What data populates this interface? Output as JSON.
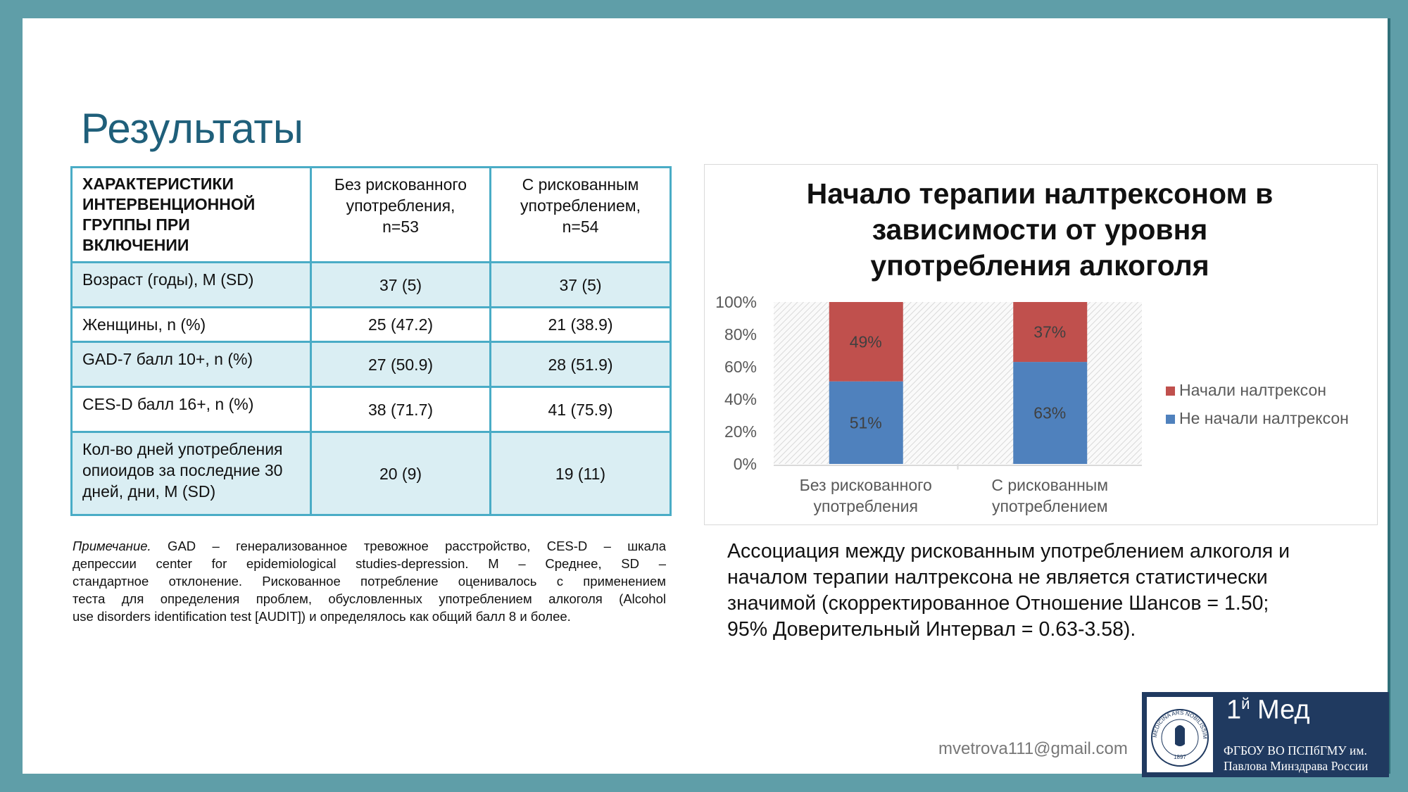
{
  "title": "Результаты",
  "table": {
    "header": [
      [
        "ХАРАКТЕРИСТИКИ ИНТЕРВЕНЦИОННОЙ ГРУППЫ ПРИ ВКЛЮЧЕНИИ"
      ],
      [
        "Без рискованного",
        "употребления,",
        "n=53"
      ],
      [
        "С рискованным",
        "употреблением,",
        "n=54"
      ]
    ],
    "rows": [
      [
        "Возраст (годы), M (SD)",
        "37 (5)",
        "37 (5)"
      ],
      [
        "Женщины, n (%)",
        "25 (47.2)",
        "21 (38.9)"
      ],
      [
        "GAD-7 балл 10+, n (%)",
        "27 (50.9)",
        "28 (51.9)"
      ],
      [
        "CES-D балл 16+, n (%)",
        "38 (71.7)",
        "41 (75.9)"
      ],
      [
        "Кол-во дней употребления опиоидов за последние 30 дней, дни, M (SD)",
        "20 (9)",
        "19 (11)"
      ]
    ]
  },
  "note": {
    "label": "Примечание.",
    "lines": [
      " GAD – генерализованное тревожное расстройство, CES-D – шкала",
      "депрессии center for epidemiological studies-depression. M – Среднее, SD –",
      "стандартное отклонение. Рискованное потребление оценивалось с применением",
      "теста для определения проблем, обусловленных употреблением алкоголя (Alcohol",
      "use disorders identification test [AUDIT]) и определялось как общий балл 8 и более."
    ]
  },
  "chart_data": {
    "type": "stacked_bar",
    "title": "Начало терапии налтрексоном в зависимости от уровня употребления алкоголя",
    "categories": [
      "Без рискованного употребления",
      "С рискованным употреблением"
    ],
    "series": [
      {
        "name": "Не начали налтрексон",
        "color": "#4f81bd",
        "values": [
          51,
          63
        ],
        "value_labels": [
          "51%",
          "63%"
        ]
      },
      {
        "name": "Начали налтрексон",
        "color": "#c0504d",
        "values": [
          49,
          37
        ],
        "value_labels": [
          "49%",
          "37%"
        ]
      }
    ],
    "ylim": [
      0,
      100
    ],
    "yticks": [
      {
        "value": 0,
        "label": "0%"
      },
      {
        "value": 20,
        "label": "20%"
      },
      {
        "value": 40,
        "label": "40%"
      },
      {
        "value": 60,
        "label": "60%"
      },
      {
        "value": 80,
        "label": "80%"
      },
      {
        "value": 100,
        "label": "100%"
      }
    ],
    "grid": false,
    "legend": "right"
  },
  "conclusion": [
    "Ассоциация между рискованным употреблением алкоголя и",
    "началом терапии налтрексона не является статистически",
    "значимой (скорректированное Отношение Шансов = 1.50;",
    "95% Доверительный Интервал =  0.63-3.58)."
  ],
  "email": "mvetrova111@gmail.com",
  "logo": {
    "number": "1",
    "suffix": "й",
    "word": "Мед",
    "lines": [
      "ФГБОУ ВО ПСПбГМУ им.",
      "Павлова Минздрава России"
    ],
    "motto": "MEDICINA ARS NOBILISSIMA",
    "year": "1897"
  }
}
